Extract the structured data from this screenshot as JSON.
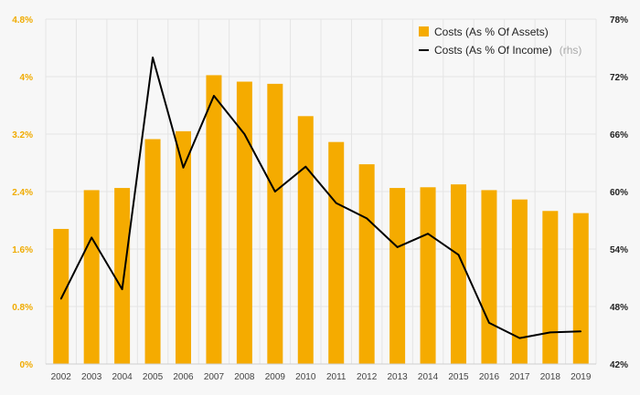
{
  "chart_data": {
    "type": "bar+line",
    "categories": [
      "2002",
      "2003",
      "2004",
      "2005",
      "2006",
      "2007",
      "2008",
      "2009",
      "2010",
      "2011",
      "2012",
      "2013",
      "2014",
      "2015",
      "2016",
      "2017",
      "2018",
      "2019"
    ],
    "series": [
      {
        "name": "Costs (As % Of Assets)",
        "kind": "bar",
        "axis": "left",
        "color": "#f5ab00",
        "values": [
          1.88,
          2.42,
          2.45,
          3.13,
          3.24,
          4.02,
          3.93,
          3.9,
          3.45,
          3.09,
          2.78,
          2.45,
          2.46,
          2.5,
          2.42,
          2.29,
          2.13,
          2.1
        ]
      },
      {
        "name": "Costs (As % Of Income)",
        "kind": "line",
        "axis": "right",
        "color": "#000000",
        "values": [
          48.8,
          55.2,
          49.8,
          74.0,
          62.5,
          70.0,
          66.0,
          60.0,
          62.6,
          58.8,
          57.2,
          54.2,
          55.6,
          53.4,
          46.3,
          44.7,
          45.3,
          45.4
        ]
      }
    ],
    "left_axis": {
      "min": 0,
      "max": 4.8,
      "ticks": [
        "0%",
        "0.8%",
        "1.6%",
        "2.4%",
        "3.2%",
        "4%",
        "4.8%"
      ],
      "color": "#f0ab00"
    },
    "right_axis": {
      "min": 42,
      "max": 78,
      "ticks": [
        "42%",
        "48%",
        "54%",
        "60%",
        "66%",
        "72%",
        "78%"
      ],
      "color": "#222222"
    },
    "legend": {
      "position": "top-right",
      "items": [
        {
          "label": "Costs (As % Of Assets)",
          "note": ""
        },
        {
          "label": "Costs (As % Of Income)",
          "note": "(rhs)"
        }
      ]
    },
    "grid": true
  }
}
